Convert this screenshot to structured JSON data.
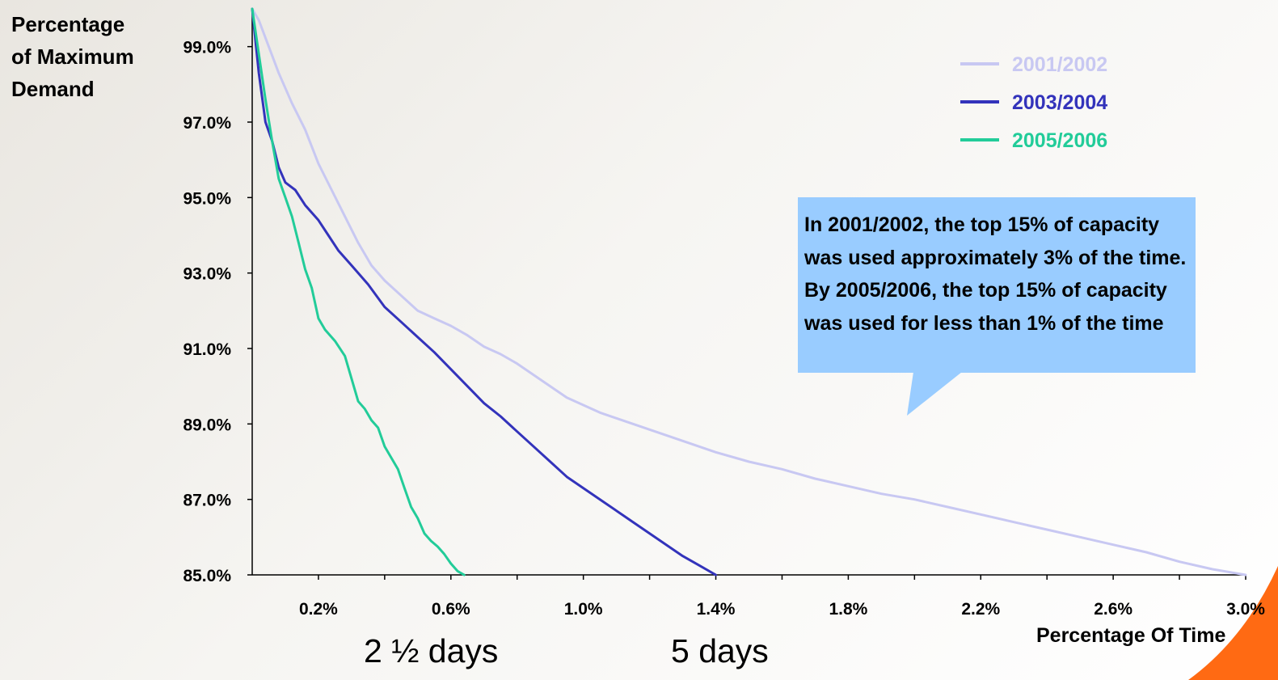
{
  "chart_data": {
    "type": "line",
    "ylabel": "Percentage\nof Maximum\nDemand",
    "xlabel": "Percentage Of Time",
    "xlim": [
      0.0,
      3.0
    ],
    "ylim": [
      85.0,
      100.0
    ],
    "x_ticks": [
      0.2,
      0.6,
      1.0,
      1.4,
      1.8,
      2.2,
      2.6,
      3.0
    ],
    "x_tick_labels": [
      "0.2%",
      "0.6%",
      "1.0%",
      "1.4%",
      "1.8%",
      "2.2%",
      "2.6%",
      "3.0%"
    ],
    "y_ticks": [
      99.0,
      97.0,
      95.0,
      93.0,
      91.0,
      89.0,
      87.0,
      85.0
    ],
    "y_tick_labels": [
      "99.0%",
      "97.0%",
      "95.0%",
      "93.0%",
      "91.0%",
      "89.0%",
      "87.0%",
      "85.0%"
    ],
    "grid": false,
    "legend_position": "top-right",
    "series": [
      {
        "name": "2001/2002",
        "color": "#c8c8f2",
        "x": [
          0.0,
          0.02,
          0.05,
          0.08,
          0.12,
          0.16,
          0.2,
          0.24,
          0.28,
          0.32,
          0.36,
          0.4,
          0.45,
          0.5,
          0.55,
          0.6,
          0.65,
          0.7,
          0.75,
          0.8,
          0.85,
          0.9,
          0.95,
          1.0,
          1.05,
          1.1,
          1.2,
          1.3,
          1.4,
          1.5,
          1.6,
          1.7,
          1.8,
          1.9,
          2.0,
          2.1,
          2.2,
          2.3,
          2.4,
          2.5,
          2.6,
          2.7,
          2.8,
          2.9,
          3.0
        ],
        "y": [
          100.0,
          99.7,
          99.0,
          98.3,
          97.5,
          96.8,
          95.9,
          95.2,
          94.5,
          93.8,
          93.2,
          92.8,
          92.4,
          92.0,
          91.8,
          91.6,
          91.35,
          91.05,
          90.85,
          90.6,
          90.3,
          90.0,
          89.7,
          89.5,
          89.3,
          89.15,
          88.85,
          88.55,
          88.25,
          88.0,
          87.8,
          87.55,
          87.35,
          87.15,
          87.0,
          86.8,
          86.6,
          86.4,
          86.2,
          86.0,
          85.8,
          85.6,
          85.35,
          85.15,
          85.0
        ]
      },
      {
        "name": "2003/2004",
        "color": "#3333bb",
        "x": [
          0.0,
          0.02,
          0.04,
          0.06,
          0.08,
          0.1,
          0.13,
          0.16,
          0.18,
          0.2,
          0.23,
          0.26,
          0.3,
          0.35,
          0.4,
          0.45,
          0.5,
          0.55,
          0.6,
          0.65,
          0.7,
          0.75,
          0.8,
          0.85,
          0.9,
          0.95,
          1.0,
          1.05,
          1.1,
          1.15,
          1.2,
          1.25,
          1.3,
          1.35,
          1.4
        ],
        "y": [
          100.0,
          98.3,
          97.0,
          96.5,
          95.8,
          95.4,
          95.2,
          94.8,
          94.6,
          94.4,
          94.0,
          93.6,
          93.2,
          92.7,
          92.1,
          91.7,
          91.3,
          90.9,
          90.45,
          90.0,
          89.55,
          89.2,
          88.8,
          88.4,
          88.0,
          87.6,
          87.3,
          87.0,
          86.7,
          86.4,
          86.1,
          85.8,
          85.5,
          85.25,
          85.0
        ]
      },
      {
        "name": "2005/2006",
        "color": "#22cc99",
        "x": [
          0.0,
          0.02,
          0.04,
          0.06,
          0.08,
          0.1,
          0.12,
          0.14,
          0.16,
          0.18,
          0.2,
          0.22,
          0.25,
          0.28,
          0.3,
          0.32,
          0.34,
          0.36,
          0.38,
          0.4,
          0.42,
          0.44,
          0.46,
          0.48,
          0.5,
          0.52,
          0.54,
          0.56,
          0.58,
          0.6,
          0.62,
          0.64
        ],
        "y": [
          100.0,
          98.8,
          97.6,
          96.5,
          95.5,
          95.0,
          94.5,
          93.8,
          93.1,
          92.6,
          91.8,
          91.5,
          91.2,
          90.8,
          90.2,
          89.6,
          89.4,
          89.1,
          88.9,
          88.4,
          88.1,
          87.8,
          87.3,
          86.8,
          86.5,
          86.1,
          85.9,
          85.75,
          85.55,
          85.3,
          85.1,
          85.0
        ]
      }
    ]
  },
  "callout": {
    "text": "In 2001/2002, the top 15% of capacity was used approximately 3% of the time. By 2005/2006, the top 15% of capacity was used for less than 1% of the time"
  },
  "annotations": {
    "two_and_half_days": "2 ½ days",
    "five_days": "5 days"
  }
}
